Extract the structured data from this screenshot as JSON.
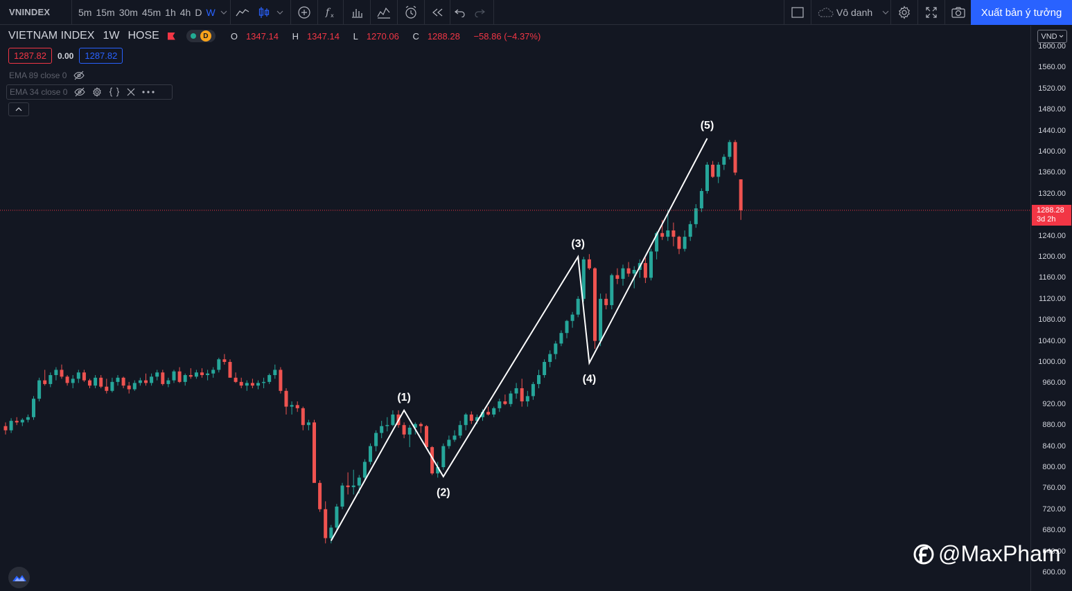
{
  "toolbar": {
    "symbol": "VNINDEX",
    "intervals": [
      "5m",
      "15m",
      "30m",
      "45m",
      "1h",
      "4h",
      "D",
      "W"
    ],
    "active_interval": "W",
    "layout_name": "Vô danh",
    "publish_label": "Xuất bản ý tưởng",
    "icons": [
      "line-chart-icon",
      "candles-icon",
      "add-compare-icon",
      "indicators-icon",
      "templates-icon",
      "alert-icon",
      "replay-icon",
      "undo-icon",
      "redo-icon",
      "layout-icon",
      "cloud-icon",
      "settings-icon",
      "fullscreen-icon",
      "camera-icon"
    ]
  },
  "legend": {
    "name": "VIETNAM INDEX",
    "interval": "1W",
    "exchange": "HOSE",
    "status_letter": "D",
    "open_k": "O",
    "open": "1347.14",
    "high_k": "H",
    "high": "1347.14",
    "low_k": "L",
    "low": "1270.06",
    "close_k": "C",
    "close": "1288.28",
    "change": "−58.86 (−4.37%)",
    "bid": "1287.82",
    "spread": "0.00",
    "ask": "1287.82"
  },
  "indicators": [
    {
      "label": "EMA 89 close 0"
    },
    {
      "label": "EMA 34 close 0"
    }
  ],
  "currency": "VND",
  "last_price": {
    "value": "1288.28",
    "countdown": "3d 2h"
  },
  "watermark": "@MaxPham",
  "colors": {
    "up": "#26a69a",
    "down": "#ef5350",
    "background": "#131722",
    "accent": "#2962ff",
    "wave_line": "#ffffff"
  },
  "chart_data": {
    "type": "candlestick",
    "title": "VIETNAM INDEX · 1W · HOSE",
    "ylim": [
      580,
      1620
    ],
    "y_ticks": [
      "1600.00",
      "1560.00",
      "1520.00",
      "1480.00",
      "1440.00",
      "1400.00",
      "1360.00",
      "1320.00",
      "1280.00",
      "1240.00",
      "1200.00",
      "1160.00",
      "1120.00",
      "1080.00",
      "1040.00",
      "1000.00",
      "960.00",
      "920.00",
      "880.00",
      "840.00",
      "800.00",
      "760.00",
      "720.00",
      "680.00",
      "640.00",
      "600.00"
    ],
    "candles": [
      [
        878,
        885,
        862,
        870
      ],
      [
        870,
        893,
        865,
        888
      ],
      [
        888,
        895,
        880,
        885
      ],
      [
        885,
        893,
        878,
        890
      ],
      [
        890,
        900,
        885,
        895
      ],
      [
        895,
        935,
        890,
        930
      ],
      [
        930,
        970,
        925,
        965
      ],
      [
        965,
        985,
        955,
        958
      ],
      [
        958,
        980,
        952,
        975
      ],
      [
        975,
        990,
        965,
        985
      ],
      [
        985,
        995,
        968,
        972
      ],
      [
        972,
        975,
        955,
        960
      ],
      [
        960,
        975,
        950,
        968
      ],
      [
        968,
        985,
        960,
        980
      ],
      [
        980,
        985,
        962,
        965
      ],
      [
        965,
        968,
        950,
        955
      ],
      [
        955,
        975,
        950,
        970
      ],
      [
        970,
        975,
        950,
        953
      ],
      [
        953,
        968,
        940,
        945
      ],
      [
        945,
        970,
        942,
        962
      ],
      [
        962,
        975,
        955,
        970
      ],
      [
        970,
        972,
        950,
        955
      ],
      [
        955,
        962,
        940,
        948
      ],
      [
        948,
        965,
        945,
        960
      ],
      [
        960,
        970,
        955,
        965
      ],
      [
        965,
        978,
        955,
        960
      ],
      [
        960,
        978,
        955,
        972
      ],
      [
        972,
        985,
        965,
        980
      ],
      [
        980,
        985,
        955,
        958
      ],
      [
        958,
        970,
        952,
        965
      ],
      [
        965,
        985,
        960,
        982
      ],
      [
        982,
        990,
        960,
        962
      ],
      [
        962,
        978,
        955,
        975
      ],
      [
        975,
        988,
        968,
        972
      ],
      [
        972,
        985,
        968,
        980
      ],
      [
        980,
        988,
        970,
        975
      ],
      [
        975,
        985,
        965,
        978
      ],
      [
        978,
        990,
        970,
        985
      ],
      [
        985,
        1008,
        980,
        1005
      ],
      [
        1005,
        1015,
        995,
        1000
      ],
      [
        1000,
        1005,
        970,
        970
      ],
      [
        970,
        980,
        960,
        962
      ],
      [
        962,
        970,
        950,
        955
      ],
      [
        955,
        965,
        945,
        960
      ],
      [
        960,
        968,
        950,
        955
      ],
      [
        955,
        965,
        948,
        960
      ],
      [
        960,
        970,
        950,
        962
      ],
      [
        962,
        978,
        958,
        975
      ],
      [
        975,
        995,
        968,
        985
      ],
      [
        985,
        990,
        940,
        945
      ],
      [
        945,
        950,
        900,
        915
      ],
      [
        915,
        925,
        900,
        918
      ],
      [
        918,
        925,
        905,
        912
      ],
      [
        912,
        915,
        870,
        880
      ],
      [
        880,
        890,
        870,
        885
      ],
      [
        885,
        890,
        780,
        770
      ],
      [
        770,
        775,
        715,
        720
      ],
      [
        720,
        735,
        655,
        665
      ],
      [
        665,
        690,
        655,
        685
      ],
      [
        685,
        730,
        680,
        725
      ],
      [
        725,
        770,
        720,
        765
      ],
      [
        765,
        790,
        748,
        762
      ],
      [
        762,
        795,
        748,
        765
      ],
      [
        765,
        785,
        750,
        780
      ],
      [
        780,
        815,
        775,
        810
      ],
      [
        810,
        845,
        805,
        840
      ],
      [
        840,
        870,
        830,
        865
      ],
      [
        865,
        888,
        855,
        878
      ],
      [
        878,
        895,
        868,
        880
      ],
      [
        880,
        908,
        878,
        900
      ],
      [
        900,
        908,
        875,
        880
      ],
      [
        880,
        885,
        855,
        862
      ],
      [
        862,
        880,
        838,
        875
      ],
      [
        875,
        885,
        862,
        882
      ],
      [
        882,
        885,
        865,
        878
      ],
      [
        878,
        880,
        835,
        838
      ],
      [
        838,
        840,
        785,
        788
      ],
      [
        788,
        810,
        780,
        800
      ],
      [
        800,
        845,
        795,
        840
      ],
      [
        840,
        860,
        835,
        852
      ],
      [
        852,
        870,
        848,
        860
      ],
      [
        860,
        888,
        855,
        880
      ],
      [
        880,
        903,
        870,
        900
      ],
      [
        900,
        906,
        882,
        888
      ],
      [
        888,
        900,
        882,
        895
      ],
      [
        895,
        910,
        888,
        905
      ],
      [
        905,
        915,
        898,
        900
      ],
      [
        900,
        915,
        895,
        912
      ],
      [
        912,
        930,
        905,
        925
      ],
      [
        925,
        938,
        918,
        920
      ],
      [
        920,
        945,
        915,
        940
      ],
      [
        940,
        960,
        930,
        950
      ],
      [
        950,
        968,
        915,
        925
      ],
      [
        925,
        945,
        915,
        935
      ],
      [
        935,
        962,
        928,
        958
      ],
      [
        958,
        985,
        950,
        975
      ],
      [
        975,
        1005,
        970,
        1000
      ],
      [
        1000,
        1022,
        990,
        1015
      ],
      [
        1015,
        1040,
        1005,
        1035
      ],
      [
        1035,
        1060,
        1030,
        1055
      ],
      [
        1055,
        1080,
        1045,
        1078
      ],
      [
        1078,
        1095,
        1065,
        1090
      ],
      [
        1090,
        1125,
        1085,
        1120
      ],
      [
        1120,
        1200,
        1115,
        1195
      ],
      [
        1195,
        1205,
        1175,
        1178
      ],
      [
        1178,
        1180,
        1025,
        1040
      ],
      [
        1040,
        1130,
        1030,
        1120
      ],
      [
        1120,
        1130,
        1100,
        1108
      ],
      [
        1108,
        1168,
        1100,
        1165
      ],
      [
        1165,
        1178,
        1148,
        1158
      ],
      [
        1158,
        1185,
        1145,
        1178
      ],
      [
        1178,
        1190,
        1162,
        1168
      ],
      [
        1168,
        1182,
        1140,
        1175
      ],
      [
        1175,
        1195,
        1160,
        1188
      ],
      [
        1188,
        1198,
        1150,
        1160
      ],
      [
        1160,
        1215,
        1155,
        1210
      ],
      [
        1210,
        1248,
        1195,
        1245
      ],
      [
        1245,
        1270,
        1232,
        1238
      ],
      [
        1238,
        1290,
        1230,
        1250
      ],
      [
        1250,
        1265,
        1220,
        1238
      ],
      [
        1238,
        1240,
        1205,
        1215
      ],
      [
        1215,
        1250,
        1210,
        1238
      ],
      [
        1238,
        1268,
        1230,
        1262
      ],
      [
        1262,
        1300,
        1255,
        1292
      ],
      [
        1292,
        1330,
        1285,
        1325
      ],
      [
        1325,
        1380,
        1320,
        1375
      ],
      [
        1375,
        1382,
        1350,
        1352
      ],
      [
        1352,
        1380,
        1340,
        1375
      ],
      [
        1375,
        1395,
        1365,
        1390
      ],
      [
        1390,
        1422,
        1385,
        1418
      ],
      [
        1418,
        1422,
        1355,
        1360
      ],
      [
        1347.14,
        1347.14,
        1270.06,
        1288.28
      ]
    ],
    "waves": [
      {
        "label": "(1)",
        "date_index": 71,
        "price": 908
      },
      {
        "label": "(2)",
        "date_index": 78,
        "price": 782
      },
      {
        "label": "(3)",
        "date_index": 102,
        "price": 1200
      },
      {
        "label": "(4)",
        "date_index": 104,
        "price": 998
      },
      {
        "label": "(5)",
        "date_index": 125,
        "price": 1425
      }
    ],
    "wave_start": {
      "date_index": 58,
      "price": 660
    },
    "last_price_line": 1288.28
  }
}
